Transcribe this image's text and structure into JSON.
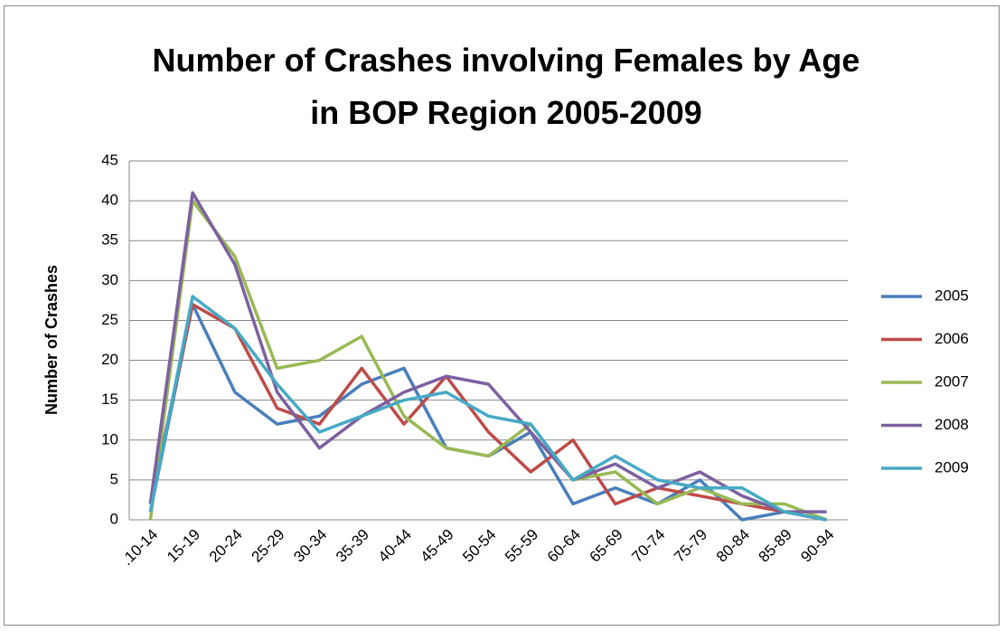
{
  "chart_data": {
    "type": "line",
    "title": "Number of Crashes involving Females by Age in BOP Region 2005-2009",
    "y_label": "Number of Crashes",
    "categories": [
      ".10-14",
      "15-19",
      "20-24",
      "25-29",
      "30-34",
      "35-39",
      "40-44",
      "45-49",
      "50-54",
      "55-59",
      "60-64",
      "65-69",
      "70-74",
      "75-79",
      "80-84",
      "85-89",
      "90-94"
    ],
    "series": [
      {
        "name": "2005",
        "color": "#4a7ebb",
        "values": [
          1,
          27,
          16,
          12,
          13,
          17,
          19,
          9,
          8,
          11,
          2,
          4,
          2,
          5,
          0,
          1,
          0
        ]
      },
      {
        "name": "2006",
        "color": "#be4b48",
        "values": [
          2,
          27,
          24,
          14,
          12,
          19,
          12,
          18,
          11,
          6,
          10,
          2,
          4,
          3,
          2,
          1,
          0
        ]
      },
      {
        "name": "2007",
        "color": "#98b954",
        "values": [
          0,
          40,
          33,
          19,
          20,
          23,
          13,
          9,
          8,
          12,
          5,
          6,
          2,
          4,
          2,
          2,
          0
        ]
      },
      {
        "name": "2008",
        "color": "#7d60a0",
        "values": [
          2,
          41,
          32,
          16,
          9,
          13,
          16,
          18,
          17,
          11,
          5,
          7,
          4,
          6,
          3,
          1,
          1
        ]
      },
      {
        "name": "2009",
        "color": "#46aac5",
        "values": [
          1,
          28,
          24,
          17,
          11,
          13,
          15,
          16,
          13,
          12,
          5,
          8,
          5,
          4,
          4,
          1,
          0
        ]
      }
    ],
    "ylim": [
      0,
      45
    ],
    "yticks": [
      0,
      5,
      10,
      15,
      20,
      25,
      30,
      35,
      40,
      45
    ],
    "grid": true,
    "legend": "right"
  }
}
